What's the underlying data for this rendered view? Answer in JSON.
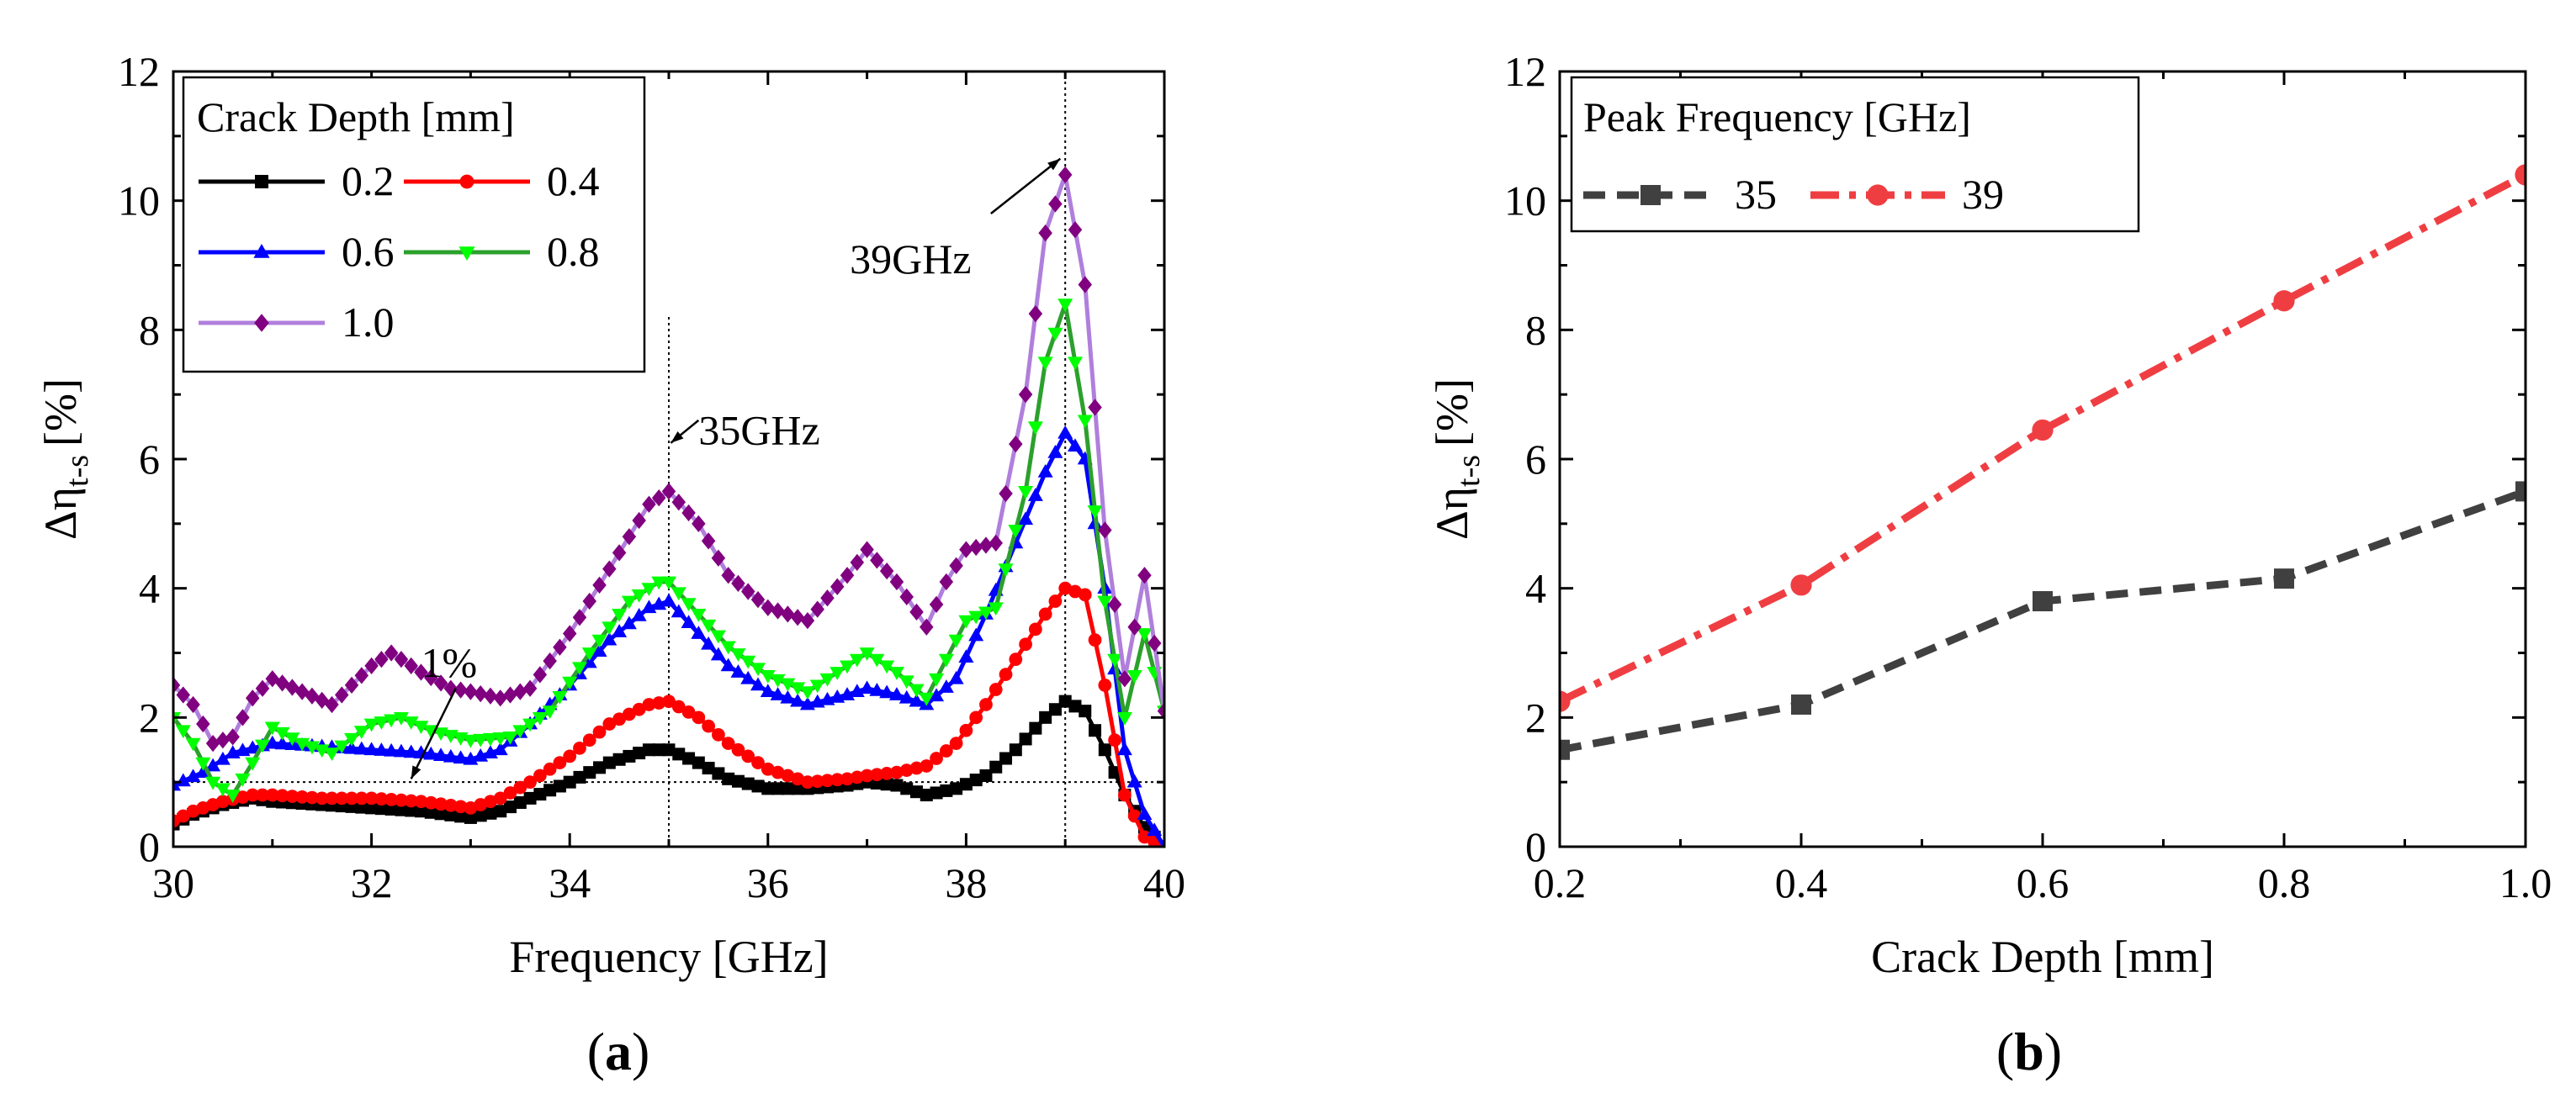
{
  "chart_data": [
    {
      "type": "line",
      "panel_label": "a",
      "xlabel": "Frequency [GHz]",
      "ylabel": "Δη",
      "ylabel_subscript": "t-s",
      "ylabel_unit": "[%]",
      "xlim": [
        30,
        40
      ],
      "ylim": [
        0,
        12
      ],
      "xticks": [
        30,
        32,
        34,
        36,
        38,
        40
      ],
      "yticks": [
        0,
        2,
        4,
        6,
        8,
        10,
        12
      ],
      "legend_title": "Crack Depth [mm]",
      "series": [
        {
          "name": "0.2",
          "color": "#000000",
          "marker": "square",
          "x": [
            30.0,
            30.2,
            30.5,
            30.8,
            31.0,
            31.5,
            32.0,
            32.5,
            33.0,
            33.3,
            33.6,
            34.0,
            34.4,
            34.8,
            35.0,
            35.3,
            35.6,
            36.0,
            36.4,
            36.8,
            37.0,
            37.3,
            37.6,
            37.9,
            38.2,
            38.5,
            38.8,
            39.0,
            39.2,
            39.4,
            39.6,
            39.8,
            40.0
          ],
          "y": [
            0.35,
            0.5,
            0.65,
            0.75,
            0.7,
            0.65,
            0.6,
            0.55,
            0.45,
            0.55,
            0.75,
            1.0,
            1.3,
            1.5,
            1.5,
            1.3,
            1.05,
            0.9,
            0.9,
            0.95,
            1.0,
            0.95,
            0.8,
            0.9,
            1.1,
            1.5,
            2.0,
            2.25,
            2.1,
            1.5,
            0.8,
            0.3,
            0.0
          ]
        },
        {
          "name": "0.4",
          "color": "#ff0000",
          "marker": "circle",
          "x": [
            30.0,
            30.2,
            30.5,
            30.8,
            31.0,
            31.5,
            32.0,
            32.5,
            33.0,
            33.3,
            33.6,
            34.0,
            34.4,
            34.8,
            35.0,
            35.3,
            35.6,
            36.0,
            36.4,
            36.8,
            37.0,
            37.3,
            37.6,
            37.9,
            38.2,
            38.5,
            38.8,
            39.0,
            39.2,
            39.4,
            39.6,
            39.8,
            40.0
          ],
          "y": [
            0.4,
            0.55,
            0.7,
            0.8,
            0.8,
            0.75,
            0.75,
            0.7,
            0.6,
            0.75,
            1.0,
            1.4,
            1.9,
            2.2,
            2.25,
            2.0,
            1.6,
            1.2,
            1.0,
            1.05,
            1.1,
            1.15,
            1.25,
            1.6,
            2.2,
            2.9,
            3.6,
            4.0,
            3.9,
            2.5,
            0.8,
            0.15,
            0.0
          ]
        },
        {
          "name": "0.6",
          "color": "#0000ff",
          "marker": "triangle",
          "x": [
            30.0,
            30.3,
            30.6,
            31.0,
            31.5,
            32.0,
            32.5,
            33.0,
            33.3,
            33.6,
            34.0,
            34.4,
            34.8,
            35.0,
            35.3,
            35.6,
            36.0,
            36.4,
            36.8,
            37.0,
            37.3,
            37.6,
            37.9,
            38.2,
            38.5,
            38.8,
            39.0,
            39.2,
            39.4,
            39.6,
            39.8,
            40.0
          ],
          "y": [
            0.95,
            1.15,
            1.45,
            1.6,
            1.55,
            1.5,
            1.45,
            1.35,
            1.5,
            1.9,
            2.5,
            3.2,
            3.7,
            3.8,
            3.3,
            2.8,
            2.4,
            2.2,
            2.35,
            2.45,
            2.35,
            2.2,
            2.6,
            3.6,
            4.7,
            5.8,
            6.4,
            6.0,
            4.0,
            1.5,
            0.5,
            0.0
          ]
        },
        {
          "name": "0.8",
          "color": "#00ff00",
          "line_color": "#2ca02c",
          "marker": "inverted-triangle",
          "x": [
            30.0,
            30.2,
            30.4,
            30.6,
            30.8,
            31.0,
            31.3,
            31.6,
            32.0,
            32.3,
            32.6,
            33.0,
            33.4,
            33.8,
            34.2,
            34.6,
            34.9,
            35.0,
            35.3,
            35.6,
            36.0,
            36.4,
            36.8,
            37.0,
            37.3,
            37.6,
            37.8,
            38.0,
            38.3,
            38.6,
            38.8,
            39.0,
            39.2,
            39.4,
            39.6,
            39.8,
            40.0
          ],
          "y": [
            2.0,
            1.6,
            1.0,
            0.8,
            1.3,
            1.85,
            1.6,
            1.45,
            1.9,
            2.0,
            1.8,
            1.65,
            1.7,
            2.1,
            3.0,
            3.8,
            4.1,
            4.1,
            3.6,
            3.1,
            2.65,
            2.4,
            2.8,
            3.0,
            2.7,
            2.3,
            2.9,
            3.5,
            3.7,
            5.5,
            7.5,
            8.4,
            6.6,
            3.8,
            2.0,
            3.3,
            2.1
          ]
        },
        {
          "name": "1.0",
          "color": "#800080",
          "line_color": "#b07fdc",
          "marker": "diamond",
          "x": [
            30.0,
            30.2,
            30.4,
            30.6,
            30.8,
            31.0,
            31.3,
            31.6,
            32.0,
            32.2,
            32.5,
            32.8,
            33.0,
            33.3,
            33.6,
            34.0,
            34.4,
            34.8,
            35.0,
            35.3,
            35.6,
            36.0,
            36.4,
            36.8,
            37.0,
            37.3,
            37.6,
            37.8,
            38.0,
            38.3,
            38.6,
            38.8,
            39.0,
            39.2,
            39.4,
            39.6,
            39.8,
            40.0
          ],
          "y": [
            2.5,
            2.2,
            1.6,
            1.7,
            2.3,
            2.6,
            2.4,
            2.2,
            2.8,
            3.0,
            2.7,
            2.45,
            2.4,
            2.3,
            2.45,
            3.3,
            4.3,
            5.3,
            5.5,
            5.0,
            4.2,
            3.7,
            3.5,
            4.2,
            4.6,
            4.1,
            3.4,
            4.1,
            4.6,
            4.7,
            7.0,
            9.5,
            10.4,
            8.7,
            4.9,
            2.6,
            4.2,
            2.1
          ]
        }
      ],
      "reference_line": {
        "y": 1.0
      },
      "vertical_lines": [
        35,
        39
      ],
      "annotations": [
        {
          "text": "1%",
          "x": 32.5,
          "y": 2.85
        },
        {
          "text": "35GHz",
          "x": 35.3,
          "y": 6.45
        },
        {
          "text": "39GHz",
          "x": 38.1,
          "y": 9.1
        }
      ]
    },
    {
      "type": "line",
      "panel_label": "b",
      "xlabel": "Crack Depth [mm]",
      "ylabel": "Δη",
      "ylabel_subscript": "t-s",
      "ylabel_unit": "[%]",
      "xlim": [
        0.2,
        1.0
      ],
      "ylim": [
        0,
        12
      ],
      "xticks": [
        "0.2",
        "0.4",
        "0.6",
        "0.8",
        "1.0"
      ],
      "yticks": [
        0,
        2,
        4,
        6,
        8,
        10,
        12
      ],
      "legend_title": "Peak Frequency [GHz]",
      "series": [
        {
          "name": "35",
          "color": "#404040",
          "marker": "square",
          "dash": "dashed",
          "x": [
            0.2,
            0.4,
            0.6,
            0.8,
            1.0
          ],
          "y": [
            1.5,
            2.2,
            3.8,
            4.15,
            5.5
          ]
        },
        {
          "name": "39",
          "color": "#ef3e42",
          "marker": "circle",
          "dash": "dashdot",
          "x": [
            0.2,
            0.4,
            0.6,
            0.8,
            1.0
          ],
          "y": [
            2.25,
            4.05,
            6.45,
            8.45,
            10.4
          ]
        }
      ]
    }
  ]
}
